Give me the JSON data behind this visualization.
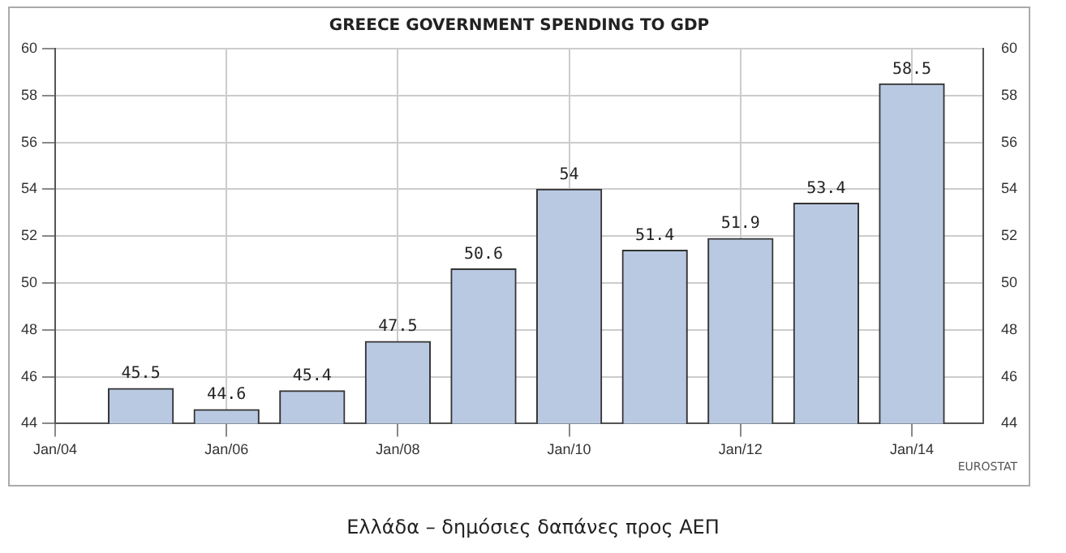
{
  "chart_data": {
    "type": "bar",
    "title": "GREECE GOVERNMENT SPENDING TO GDP",
    "x": [
      "2005-01",
      "2006-01",
      "2007-01",
      "2008-01",
      "2009-01",
      "2010-01",
      "2011-01",
      "2012-01",
      "2013-01",
      "2014-01"
    ],
    "values": [
      45.5,
      44.6,
      45.4,
      47.5,
      50.6,
      54,
      51.4,
      51.9,
      53.4,
      58.5
    ],
    "color": "#b9c9e2",
    "data_labels": true,
    "xlim": [
      "2004-01",
      "2014-11"
    ],
    "xticks": [
      {
        "value": "2004-01",
        "label": "Jan/04"
      },
      {
        "value": "2006-01",
        "label": "Jan/06"
      },
      {
        "value": "2008-01",
        "label": "Jan/08"
      },
      {
        "value": "2010-01",
        "label": "Jan/10"
      },
      {
        "value": "2012-01",
        "label": "Jan/12"
      },
      {
        "value": "2014-01",
        "label": "Jan/14"
      }
    ],
    "ylim": [
      44,
      60
    ],
    "yticks": [
      44,
      46,
      48,
      50,
      52,
      54,
      56,
      58,
      60
    ],
    "y2lim": [
      44,
      60
    ],
    "y2ticks": [
      44,
      46,
      48,
      50,
      52,
      54,
      56,
      58,
      60
    ],
    "grid": true,
    "legend": false,
    "annotations": [
      "EUROSTAT",
      "Ελλάδα – δημόσιες δαπάνες προς ΑΕΠ"
    ]
  }
}
